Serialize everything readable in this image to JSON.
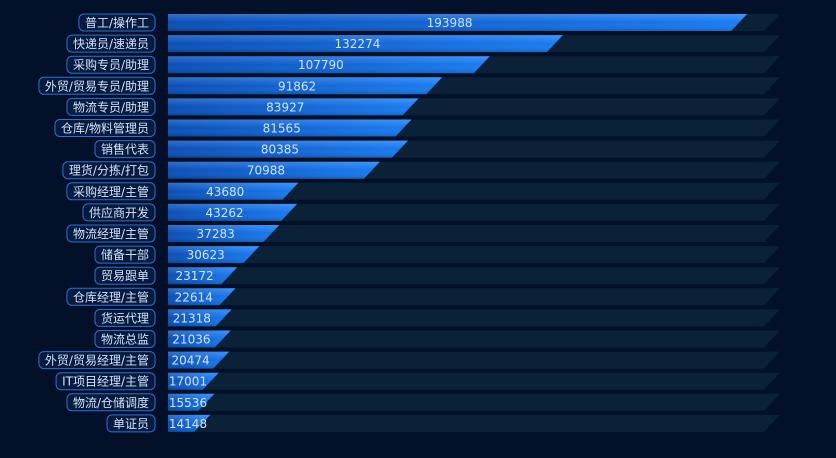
{
  "chart_data": {
    "type": "bar",
    "orientation": "horizontal",
    "title": "",
    "xlabel": "",
    "ylabel": "",
    "xlim": [
      0,
      205000
    ],
    "grid": false,
    "legend": "none",
    "categories": [
      "普工/操作工",
      "快递员/速递员",
      "采购专员/助理",
      "外贸/贸易专员/助理",
      "物流专员/助理",
      "仓库/物料管理员",
      "销售代表",
      "理货/分拣/打包",
      "采购经理/主管",
      "供应商开发",
      "物流经理/主管",
      "储备干部",
      "贸易跟单",
      "仓库经理/主管",
      "货运代理",
      "物流总监",
      "外贸/贸易经理/主管",
      "IT项目经理/主管",
      "物流/仓储调度",
      "单证员"
    ],
    "values": [
      193988,
      132274,
      107790,
      91862,
      83927,
      81565,
      80385,
      70988,
      43680,
      43262,
      37283,
      30623,
      23172,
      22614,
      21318,
      21036,
      20474,
      17001,
      15536,
      14148
    ],
    "colors": {
      "background": "#02102a",
      "track": "#0b2138",
      "bar_start": "#0a4fb8",
      "bar_end": "#1a7cf2",
      "label_border": "#2f6fd0",
      "label_fill": "#061b3d",
      "text": "#cfe3ff"
    }
  }
}
